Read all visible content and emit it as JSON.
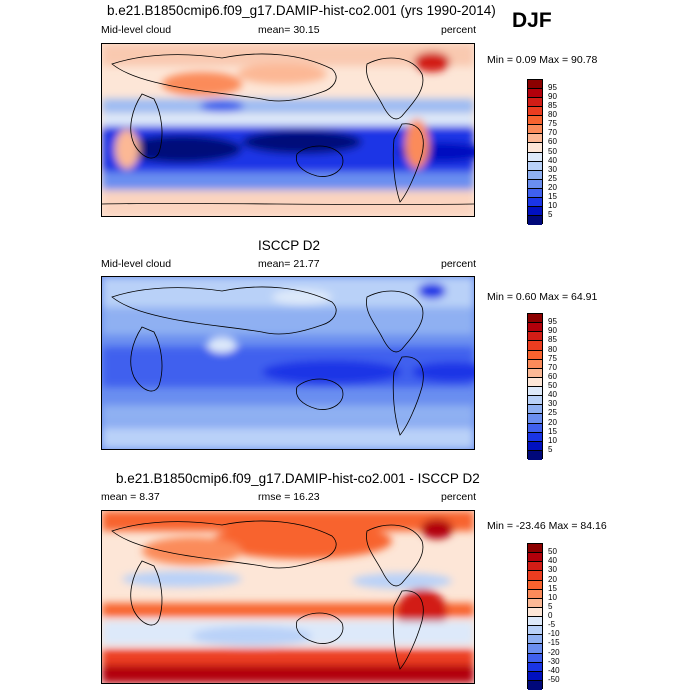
{
  "season": "DJF",
  "panels": [
    {
      "title": "b.e21.B1850cmip6.f09_g17.DAMIP-hist-co2.001 (yrs 1990-2014)",
      "left_label": "Mid-level cloud",
      "center_label": "mean=  30.15",
      "right_label": "percent",
      "minmax": "Min =   0.09 Max =  90.78",
      "cbar_labels": [
        "95",
        "90",
        "85",
        "80",
        "75",
        "70",
        "60",
        "50",
        "40",
        "30",
        "25",
        "20",
        "15",
        "10",
        "5"
      ],
      "cbar_colors": [
        "#8b0000",
        "#b2000b",
        "#d21d16",
        "#ec3d20",
        "#f8632f",
        "#fb8b5a",
        "#fcb895",
        "#fde6d7",
        "#dde9fa",
        "#b9d1f8",
        "#8fb0f2",
        "#6a8ef0",
        "#3f60ee",
        "#1a35e6",
        "#0010c0",
        "#00087a"
      ]
    },
    {
      "title": "ISCCP D2",
      "left_label": "Mid-level cloud",
      "center_label": "mean=  21.77",
      "right_label": "percent",
      "minmax": "Min =   0.60 Max =  64.91",
      "cbar_labels": [
        "95",
        "90",
        "85",
        "80",
        "75",
        "70",
        "60",
        "50",
        "40",
        "30",
        "25",
        "20",
        "15",
        "10",
        "5"
      ],
      "cbar_colors": [
        "#8b0000",
        "#b2000b",
        "#d21d16",
        "#ec3d20",
        "#f8632f",
        "#fb8b5a",
        "#fcb895",
        "#fde6d7",
        "#dde9fa",
        "#b9d1f8",
        "#8fb0f2",
        "#6a8ef0",
        "#3f60ee",
        "#1a35e6",
        "#0010c0",
        "#00087a"
      ]
    },
    {
      "title": "b.e21.B1850cmip6.f09_g17.DAMIP-hist-co2.001 - ISCCP D2",
      "left_label": "mean =   8.37",
      "center_label": "rmse =  16.23",
      "right_label": "percent",
      "minmax": "Min = -23.46 Max =  84.16",
      "cbar_labels": [
        "50",
        "40",
        "30",
        "20",
        "15",
        "10",
        "5",
        "0",
        "-5",
        "-10",
        "-15",
        "-20",
        "-30",
        "-40",
        "-50"
      ],
      "cbar_colors": [
        "#8b0000",
        "#b2000b",
        "#d21d16",
        "#ec3d20",
        "#f8632f",
        "#fb8b5a",
        "#fcb895",
        "#fde6d7",
        "#dde9fa",
        "#b9d1f8",
        "#8fb0f2",
        "#6a8ef0",
        "#3f60ee",
        "#1a35e6",
        "#0010c0",
        "#00087a"
      ]
    }
  ],
  "chart_data": [
    {
      "type": "heatmap",
      "title": "b.e21.B1850cmip6.f09_g17.DAMIP-hist-co2.001 (yrs 1990-2014)",
      "variable": "Mid-level cloud",
      "units": "percent",
      "mean": 30.15,
      "min": 0.09,
      "max": 90.78,
      "contour_levels": [
        5,
        10,
        15,
        20,
        25,
        30,
        40,
        50,
        60,
        70,
        75,
        80,
        85,
        90,
        95
      ]
    },
    {
      "type": "heatmap",
      "title": "ISCCP D2",
      "variable": "Mid-level cloud",
      "units": "percent",
      "mean": 21.77,
      "min": 0.6,
      "max": 64.91,
      "contour_levels": [
        5,
        10,
        15,
        20,
        25,
        30,
        40,
        50,
        60,
        70,
        75,
        80,
        85,
        90,
        95
      ]
    },
    {
      "type": "heatmap",
      "title": "b.e21.B1850cmip6.f09_g17.DAMIP-hist-co2.001 - ISCCP D2",
      "units": "percent",
      "mean": 8.37,
      "rmse": 16.23,
      "min": -23.46,
      "max": 84.16,
      "contour_levels": [
        -50,
        -40,
        -30,
        -20,
        -15,
        -10,
        -5,
        0,
        5,
        10,
        15,
        20,
        30,
        40,
        50
      ]
    }
  ]
}
